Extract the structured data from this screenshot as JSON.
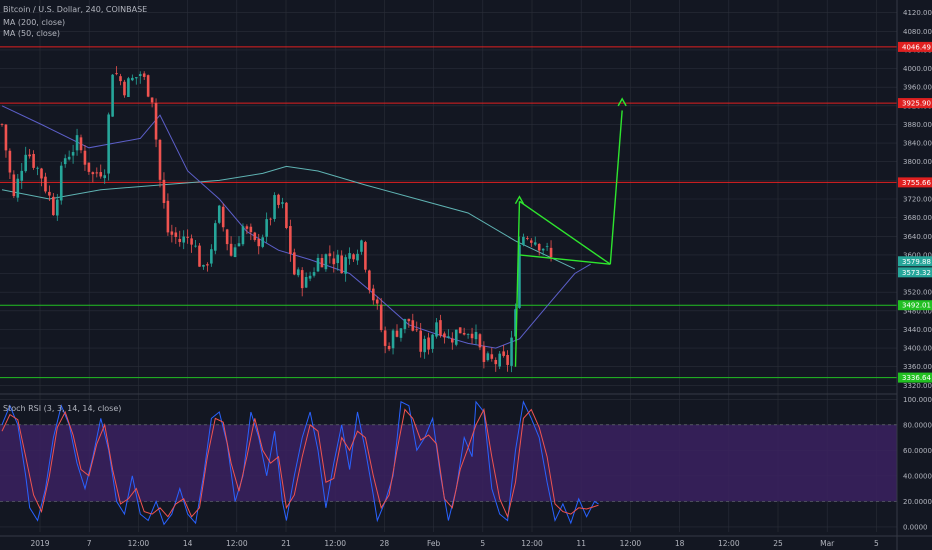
{
  "title": "Bitcoin / U.S. Dollar, 240, COINBASE",
  "indicators": {
    "ma200": "MA (200, close)",
    "ma50": "MA (50, close)",
    "stoch": "Stoch RSI (3, 3, 14, 14, close)"
  },
  "colors": {
    "background": "#131722",
    "grid": "#2a2e39",
    "up": "#26a69a",
    "down": "#ef5350",
    "ma200": "#5fb3b3",
    "ma50": "#5c5fc9",
    "resistance": "#e02020",
    "support": "#22c022",
    "drawing": "#2ee52e",
    "stoch_k": "#2962ff",
    "stoch_d": "#ef5350",
    "stoch_band": "#3b2160"
  },
  "chart_data": [
    {
      "type": "candlestick",
      "title": "Bitcoin / U.S. Dollar, 240, COINBASE",
      "x_ticks": [
        "2019",
        "7",
        "12:00",
        "14",
        "12:00",
        "21",
        "12:00",
        "28",
        "Feb",
        "5",
        "12:00",
        "11",
        "12:00",
        "18",
        "12:00",
        "25",
        "Mar",
        "5"
      ],
      "y_ticks": [
        "3320.00",
        "3360.00",
        "3400.00",
        "3440.00",
        "3480.00",
        "3520.00",
        "3560.00",
        "3600.00",
        "3640.00",
        "3680.00",
        "3720.00",
        "3760.00",
        "3800.00",
        "3840.00",
        "3880.00",
        "3920.00",
        "3960.00",
        "4000.00",
        "4040.00",
        "4080.00",
        "4120.00"
      ],
      "ylim": [
        3310,
        4130
      ],
      "grid": true,
      "last_candle_index": 139,
      "ohlc_anchors": [
        [
          0,
          3880
        ],
        [
          3,
          3720
        ],
        [
          6,
          3830
        ],
        [
          10,
          3770
        ],
        [
          13,
          3700
        ],
        [
          16,
          3810
        ],
        [
          19,
          3840
        ],
        [
          23,
          3770
        ],
        [
          26,
          3790
        ],
        [
          28,
          4000
        ],
        [
          31,
          3960
        ],
        [
          35,
          3990
        ],
        [
          38,
          3940
        ],
        [
          40,
          3760
        ],
        [
          42,
          3650
        ],
        [
          45,
          3630
        ],
        [
          48,
          3640
        ],
        [
          51,
          3560
        ],
        [
          53,
          3620
        ],
        [
          55,
          3690
        ],
        [
          58,
          3600
        ],
        [
          61,
          3660
        ],
        [
          64,
          3620
        ],
        [
          67,
          3660
        ],
        [
          69,
          3710
        ],
        [
          71,
          3700
        ],
        [
          74,
          3560
        ],
        [
          77,
          3540
        ],
        [
          80,
          3590
        ],
        [
          83,
          3600
        ],
        [
          86,
          3580
        ],
        [
          89,
          3610
        ],
        [
          91,
          3630
        ],
        [
          93,
          3540
        ],
        [
          95,
          3480
        ],
        [
          97,
          3400
        ],
        [
          100,
          3440
        ],
        [
          103,
          3460
        ],
        [
          106,
          3400
        ],
        [
          108,
          3410
        ],
        [
          110,
          3460
        ],
        [
          113,
          3420
        ],
        [
          116,
          3440
        ],
        [
          119,
          3440
        ],
        [
          122,
          3370
        ],
        [
          125,
          3370
        ],
        [
          128,
          3370
        ],
        [
          130,
          3470
        ],
        [
          131,
          3640
        ],
        [
          134,
          3640
        ],
        [
          137,
          3620
        ],
        [
          139,
          3590
        ]
      ],
      "ma200": [
        [
          0,
          3740
        ],
        [
          12,
          3720
        ],
        [
          25,
          3740
        ],
        [
          40,
          3750
        ],
        [
          55,
          3760
        ],
        [
          66,
          3775
        ],
        [
          72,
          3790
        ],
        [
          80,
          3780
        ],
        [
          92,
          3750
        ],
        [
          105,
          3720
        ],
        [
          118,
          3690
        ],
        [
          130,
          3630
        ],
        [
          140,
          3590
        ],
        [
          145,
          3570
        ]
      ],
      "ma50": [
        [
          0,
          3920
        ],
        [
          10,
          3880
        ],
        [
          22,
          3830
        ],
        [
          35,
          3850
        ],
        [
          40,
          3900
        ],
        [
          47,
          3780
        ],
        [
          55,
          3720
        ],
        [
          62,
          3650
        ],
        [
          70,
          3610
        ],
        [
          78,
          3590
        ],
        [
          88,
          3560
        ],
        [
          95,
          3510
        ],
        [
          103,
          3450
        ],
        [
          110,
          3430
        ],
        [
          118,
          3410
        ],
        [
          125,
          3400
        ],
        [
          131,
          3420
        ],
        [
          138,
          3490
        ],
        [
          145,
          3560
        ],
        [
          149,
          3580
        ]
      ],
      "horizontal_lines": [
        {
          "label": "4046.49",
          "value": 4046.49,
          "kind": "resistance"
        },
        {
          "label": "3925.90",
          "value": 3925.9,
          "kind": "resistance"
        },
        {
          "label": "3755.66",
          "value": 3755.66,
          "kind": "resistance"
        },
        {
          "label": "3492.01",
          "value": 3492.01,
          "kind": "support"
        },
        {
          "label": "3336.64",
          "value": 3336.64,
          "kind": "support"
        }
      ],
      "price_tags": [
        {
          "label": "3579.88",
          "value": 3579.88
        },
        {
          "label": "3573.32",
          "value": 3573.32
        }
      ],
      "drawing_lines": [
        {
          "points": [
            [
              130,
              3360
            ],
            [
              131,
              3715
            ]
          ]
        },
        {
          "points": [
            [
              131,
              3715
            ],
            [
              154,
              3580
            ]
          ]
        },
        {
          "points": [
            [
              131,
              3600
            ],
            [
              154,
              3580
            ]
          ]
        },
        {
          "points": [
            [
              154,
              3580
            ],
            [
              157,
              3910
            ]
          ]
        }
      ],
      "arrow_heads": [
        {
          "tip": [
            131,
            3725
          ],
          "direction": "up"
        },
        {
          "tip": [
            157,
            3935
          ],
          "direction": "up"
        }
      ]
    },
    {
      "type": "line",
      "title": "Stoch RSI (3, 3, 14, 14, close)",
      "y_ticks": [
        "0.0000",
        "20.0000",
        "40.0000",
        "60.0000",
        "80.0000",
        "100.0000"
      ],
      "ylim": [
        -4,
        101
      ],
      "bands": [
        20,
        80
      ],
      "series": [
        {
          "name": "K",
          "points": [
            [
              0,
              80
            ],
            [
              2,
              95
            ],
            [
              4,
              80
            ],
            [
              6,
              40
            ],
            [
              7,
              15
            ],
            [
              9,
              5
            ],
            [
              11,
              30
            ],
            [
              13,
              70
            ],
            [
              15,
              95
            ],
            [
              17,
              80
            ],
            [
              19,
              50
            ],
            [
              21,
              30
            ],
            [
              23,
              55
            ],
            [
              25,
              85
            ],
            [
              27,
              60
            ],
            [
              29,
              20
            ],
            [
              31,
              10
            ],
            [
              33,
              40
            ],
            [
              35,
              10
            ],
            [
              37,
              5
            ],
            [
              39,
              20
            ],
            [
              41,
              2
            ],
            [
              43,
              10
            ],
            [
              45,
              30
            ],
            [
              47,
              10
            ],
            [
              49,
              3
            ],
            [
              51,
              40
            ],
            [
              53,
              85
            ],
            [
              55,
              90
            ],
            [
              57,
              65
            ],
            [
              59,
              20
            ],
            [
              61,
              40
            ],
            [
              63,
              90
            ],
            [
              65,
              70
            ],
            [
              67,
              40
            ],
            [
              69,
              75
            ],
            [
              71,
              20
            ],
            [
              72,
              5
            ],
            [
              74,
              40
            ],
            [
              76,
              70
            ],
            [
              78,
              90
            ],
            [
              80,
              60
            ],
            [
              82,
              15
            ],
            [
              84,
              50
            ],
            [
              86,
              80
            ],
            [
              88,
              45
            ],
            [
              90,
              90
            ],
            [
              92,
              60
            ],
            [
              94,
              25
            ],
            [
              95,
              5
            ],
            [
              97,
              20
            ],
            [
              99,
              40
            ],
            [
              101,
              98
            ],
            [
              103,
              95
            ],
            [
              105,
              60
            ],
            [
              107,
              70
            ],
            [
              109,
              85
            ],
            [
              111,
              40
            ],
            [
              113,
              5
            ],
            [
              115,
              30
            ],
            [
              117,
              70
            ],
            [
              119,
              55
            ],
            [
              120,
              98
            ],
            [
              122,
              90
            ],
            [
              124,
              30
            ],
            [
              126,
              10
            ],
            [
              128,
              5
            ],
            [
              130,
              60
            ],
            [
              132,
              98
            ],
            [
              134,
              85
            ],
            [
              136,
              70
            ],
            [
              138,
              35
            ],
            [
              140,
              5
            ],
            [
              142,
              18
            ],
            [
              144,
              3
            ],
            [
              146,
              22
            ],
            [
              148,
              8
            ],
            [
              150,
              20
            ],
            [
              151,
              18
            ]
          ]
        },
        {
          "name": "D",
          "points": [
            [
              0,
              75
            ],
            [
              2,
              88
            ],
            [
              4,
              84
            ],
            [
              6,
              55
            ],
            [
              8,
              25
            ],
            [
              10,
              12
            ],
            [
              12,
              40
            ],
            [
              14,
              78
            ],
            [
              16,
              90
            ],
            [
              18,
              72
            ],
            [
              20,
              45
            ],
            [
              22,
              40
            ],
            [
              24,
              65
            ],
            [
              26,
              80
            ],
            [
              28,
              45
            ],
            [
              30,
              18
            ],
            [
              32,
              22
            ],
            [
              34,
              30
            ],
            [
              36,
              12
            ],
            [
              38,
              10
            ],
            [
              40,
              15
            ],
            [
              42,
              8
            ],
            [
              44,
              18
            ],
            [
              46,
              22
            ],
            [
              48,
              8
            ],
            [
              50,
              15
            ],
            [
              52,
              55
            ],
            [
              54,
              85
            ],
            [
              56,
              82
            ],
            [
              58,
              50
            ],
            [
              60,
              28
            ],
            [
              62,
              55
            ],
            [
              64,
              85
            ],
            [
              66,
              60
            ],
            [
              68,
              50
            ],
            [
              70,
              55
            ],
            [
              72,
              15
            ],
            [
              74,
              25
            ],
            [
              76,
              55
            ],
            [
              78,
              80
            ],
            [
              80,
              75
            ],
            [
              82,
              35
            ],
            [
              84,
              38
            ],
            [
              86,
              70
            ],
            [
              88,
              60
            ],
            [
              90,
              75
            ],
            [
              92,
              70
            ],
            [
              94,
              40
            ],
            [
              96,
              15
            ],
            [
              98,
              25
            ],
            [
              100,
              60
            ],
            [
              102,
              92
            ],
            [
              104,
              85
            ],
            [
              106,
              68
            ],
            [
              108,
              72
            ],
            [
              110,
              65
            ],
            [
              112,
              22
            ],
            [
              114,
              15
            ],
            [
              116,
              45
            ],
            [
              118,
              62
            ],
            [
              120,
              80
            ],
            [
              122,
              92
            ],
            [
              124,
              55
            ],
            [
              126,
              22
            ],
            [
              128,
              8
            ],
            [
              130,
              35
            ],
            [
              132,
              85
            ],
            [
              134,
              92
            ],
            [
              136,
              78
            ],
            [
              138,
              55
            ],
            [
              140,
              18
            ],
            [
              142,
              12
            ],
            [
              144,
              10
            ],
            [
              146,
              15
            ],
            [
              148,
              14
            ],
            [
              150,
              16
            ],
            [
              151,
              17
            ]
          ]
        }
      ]
    }
  ]
}
